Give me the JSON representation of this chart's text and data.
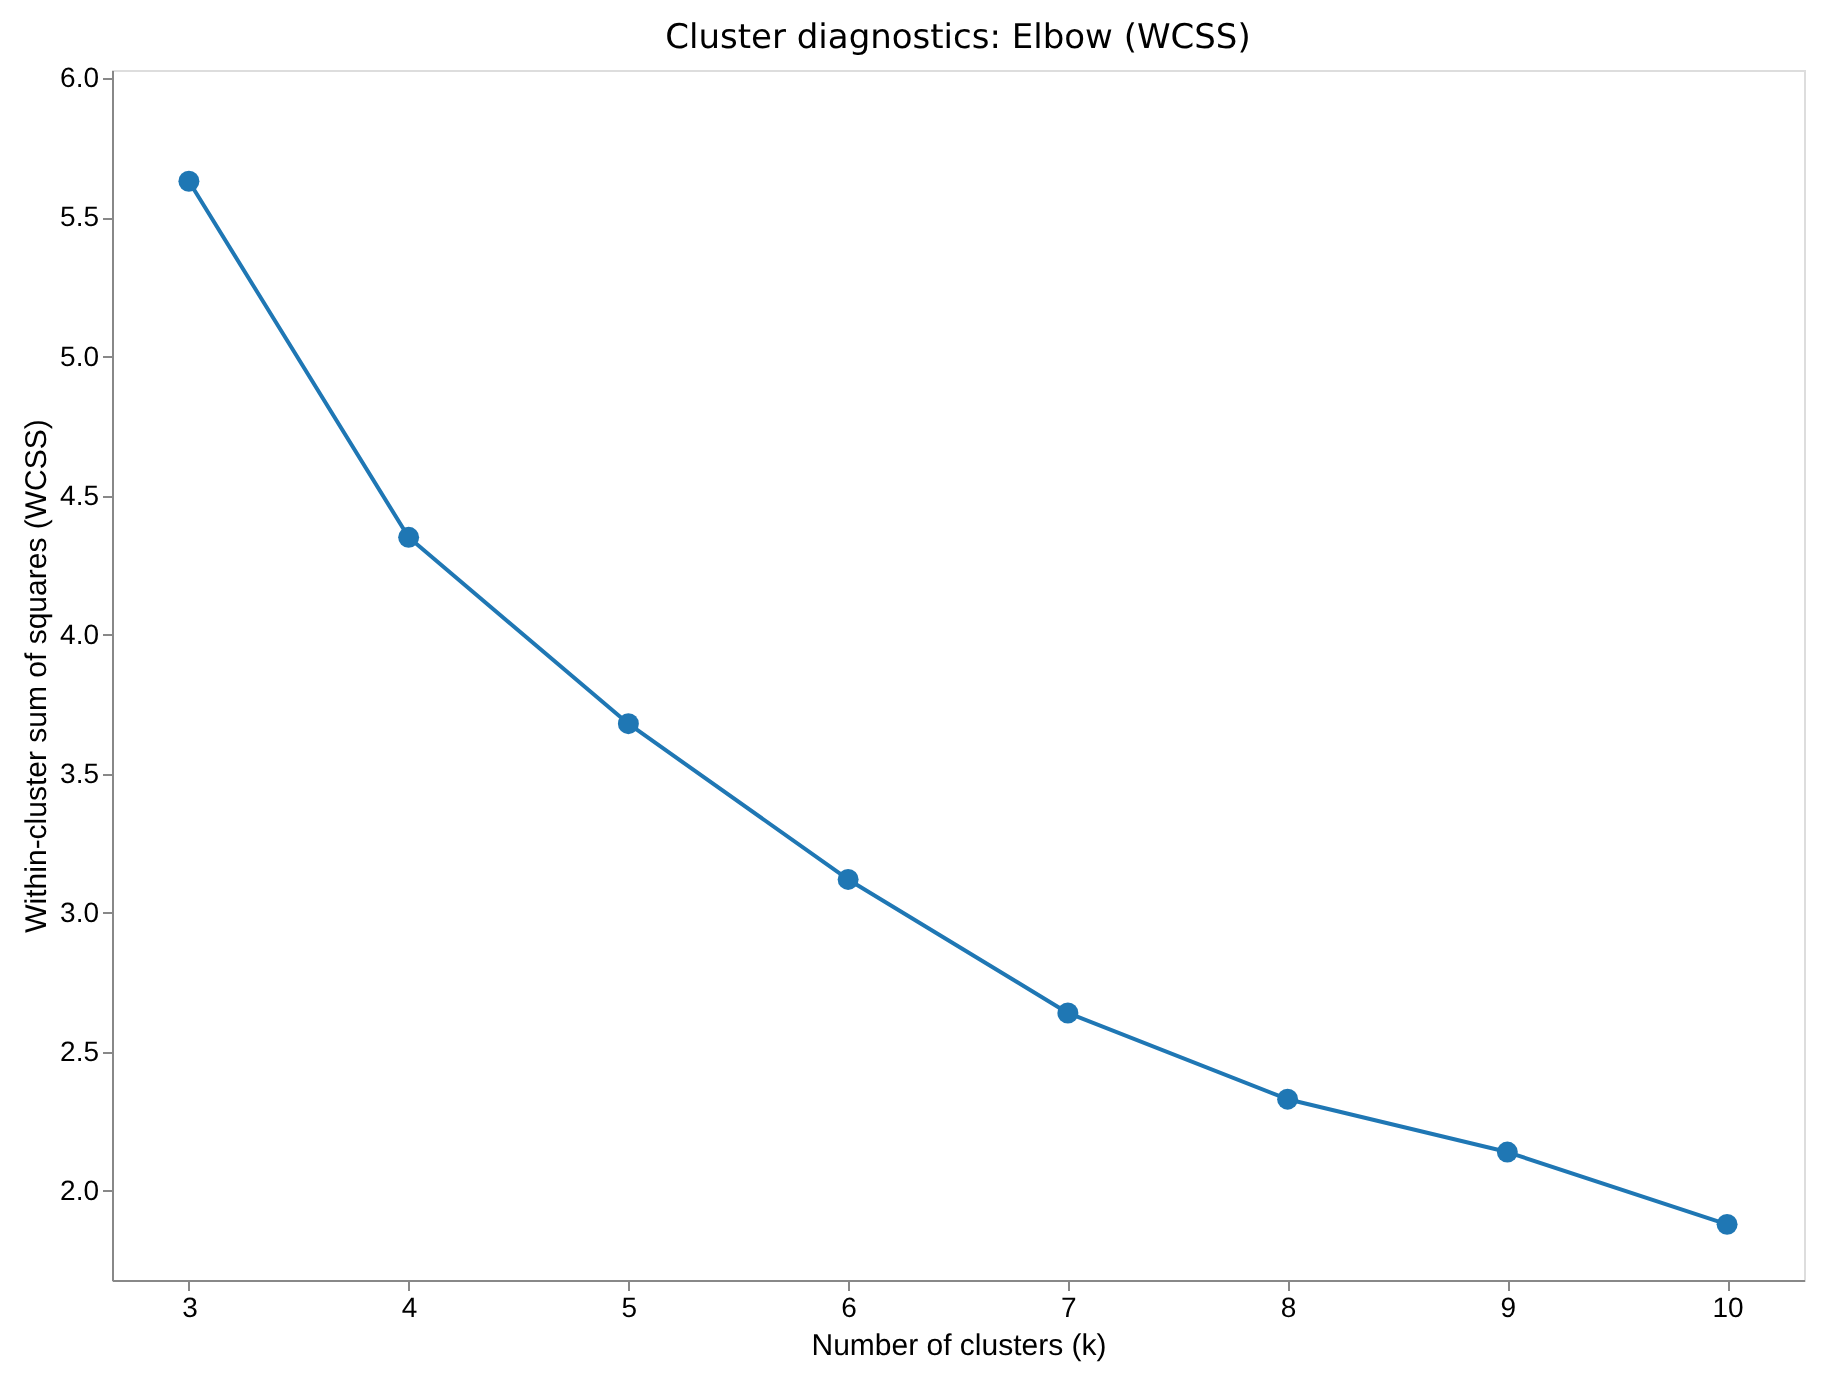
{
  "chart_data": {
    "type": "line",
    "title": "Cluster diagnostics: Elbow (WCSS)",
    "xlabel": "Number of clusters (k)",
    "ylabel": "Within-cluster sum of squares (WCSS)",
    "x": [
      3,
      4,
      5,
      6,
      7,
      8,
      9,
      10
    ],
    "series": [
      {
        "color": "#1f77b4",
        "values": [
          5.63,
          4.35,
          3.68,
          3.12,
          2.64,
          2.33,
          2.14,
          1.88
        ]
      }
    ],
    "xlim": [
      2.65,
      10.35
    ],
    "xticks": [
      3,
      4,
      5,
      6,
      7,
      8,
      9,
      10
    ],
    "ylim": [
      1.68,
      6.03
    ],
    "yticks": [
      {
        "value": 2,
        "label": "2.0"
      },
      2.5,
      {
        "value": 3,
        "label": "3.0"
      },
      3.5,
      {
        "value": 4,
        "label": "4.0"
      },
      4.5,
      {
        "value": 5,
        "label": "5.0"
      },
      5.5,
      {
        "value": 6,
        "label": "6.0"
      }
    ],
    "marker": "circle",
    "line_style": "solid",
    "grid": false,
    "legend": false
  }
}
